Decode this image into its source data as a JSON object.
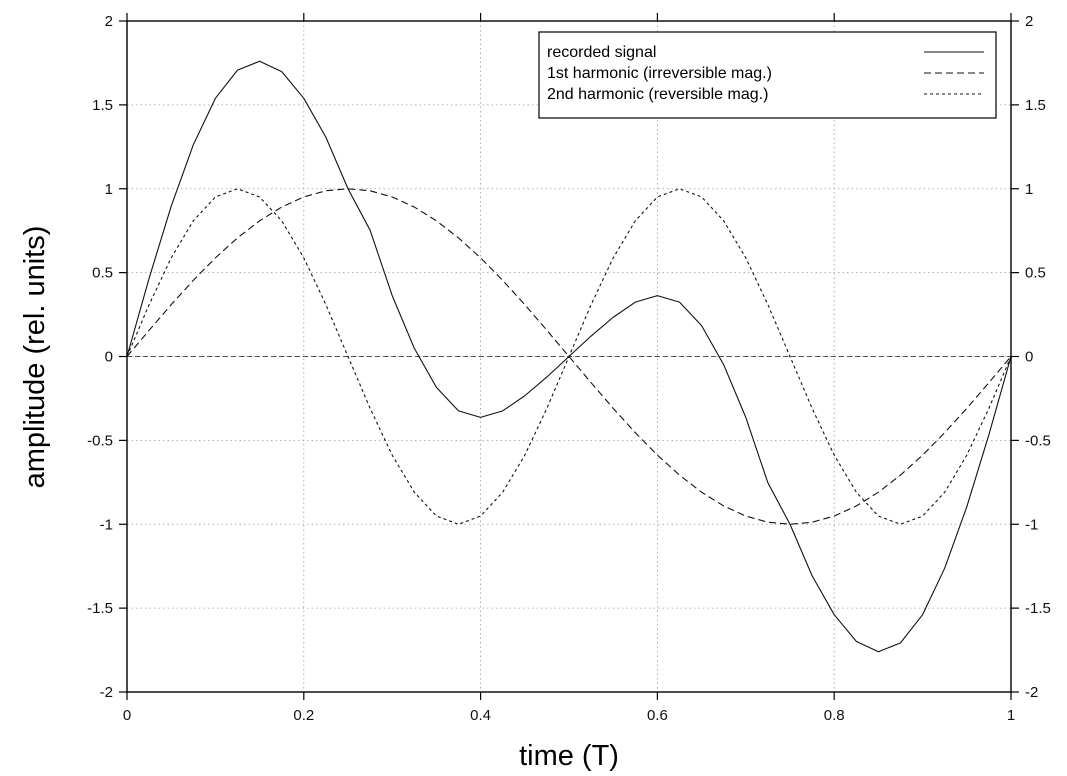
{
  "chart_data": {
    "type": "line",
    "title": "",
    "xlabel": "time (T)",
    "ylabel": "amplitude (rel. units)",
    "xlim": [
      0,
      1
    ],
    "ylim": [
      -2,
      2
    ],
    "x_ticks": [
      0,
      0.2,
      0.4,
      0.6,
      0.8,
      1
    ],
    "y_ticks": [
      -2,
      -1.5,
      -1,
      -0.5,
      0,
      0.5,
      1,
      1.5,
      2
    ],
    "x_tick_labels": [
      "0",
      "0.2",
      "0.4",
      "0.6",
      "0.8",
      "1"
    ],
    "y_tick_labels": [
      "-2",
      "-1.5",
      "-1",
      "-0.5",
      "0",
      "0.5",
      "1",
      "1.5",
      "2"
    ],
    "y2_tick_labels": [
      "-2",
      "-1.5",
      "-1",
      "-0.5",
      "0",
      "0.5",
      "1",
      "1.5",
      "2"
    ],
    "grid": true,
    "legend_position": "top-right",
    "series": [
      {
        "name": "recorded signal",
        "line_style": "solid",
        "x": [
          0,
          0.025,
          0.05,
          0.075,
          0.1,
          0.125,
          0.15,
          0.175,
          0.2,
          0.225,
          0.25,
          0.275,
          0.3,
          0.325,
          0.35,
          0.375,
          0.4,
          0.425,
          0.45,
          0.475,
          0.5,
          0.525,
          0.55,
          0.575,
          0.6,
          0.625,
          0.65,
          0.675,
          0.7,
          0.725,
          0.75,
          0.775,
          0.8,
          0.825,
          0.85,
          0.875,
          0.9,
          0.925,
          0.95,
          0.975,
          1
        ],
        "y": [
          0,
          0.466,
          0.896,
          1.262,
          1.539,
          1.707,
          1.76,
          1.698,
          1.539,
          1.307,
          1.0,
          0.753,
          0.363,
          0.049,
          -0.184,
          -0.324,
          -0.363,
          -0.324,
          -0.234,
          -0.122,
          0,
          0.122,
          0.234,
          0.324,
          0.363,
          0.324,
          0.184,
          -0.049,
          -0.363,
          -0.753,
          -1.0,
          -1.307,
          -1.539,
          -1.698,
          -1.76,
          -1.707,
          -1.539,
          -1.262,
          -0.896,
          -0.466,
          0
        ]
      },
      {
        "name": "1st harmonic (irreversible mag.)",
        "line_style": "dashed",
        "x": [
          0,
          0.025,
          0.05,
          0.075,
          0.1,
          0.125,
          0.15,
          0.175,
          0.2,
          0.225,
          0.25,
          0.275,
          0.3,
          0.325,
          0.35,
          0.375,
          0.4,
          0.425,
          0.45,
          0.475,
          0.5,
          0.525,
          0.55,
          0.575,
          0.6,
          0.625,
          0.65,
          0.675,
          0.7,
          0.725,
          0.75,
          0.775,
          0.8,
          0.825,
          0.85,
          0.875,
          0.9,
          0.925,
          0.95,
          0.975,
          1
        ],
        "y": [
          0,
          0.156,
          0.309,
          0.454,
          0.588,
          0.707,
          0.809,
          0.891,
          0.951,
          0.988,
          1.0,
          0.988,
          0.951,
          0.891,
          0.809,
          0.707,
          0.588,
          0.454,
          0.309,
          0.156,
          0,
          -0.156,
          -0.309,
          -0.454,
          -0.588,
          -0.707,
          -0.809,
          -0.891,
          -0.951,
          -0.988,
          -1.0,
          -0.988,
          -0.951,
          -0.891,
          -0.809,
          -0.707,
          -0.588,
          -0.454,
          -0.309,
          -0.156,
          0
        ]
      },
      {
        "name": "2nd harmonic (reversible mag.)",
        "line_style": "dotted",
        "x": [
          0,
          0.025,
          0.05,
          0.075,
          0.1,
          0.125,
          0.15,
          0.175,
          0.2,
          0.225,
          0.25,
          0.275,
          0.3,
          0.325,
          0.35,
          0.375,
          0.4,
          0.425,
          0.45,
          0.475,
          0.5,
          0.525,
          0.55,
          0.575,
          0.6,
          0.625,
          0.65,
          0.675,
          0.7,
          0.725,
          0.75,
          0.775,
          0.8,
          0.825,
          0.85,
          0.875,
          0.9,
          0.925,
          0.95,
          0.975,
          1
        ],
        "y": [
          0,
          0.309,
          0.588,
          0.809,
          0.951,
          1.0,
          0.951,
          0.809,
          0.588,
          0.309,
          0,
          -0.309,
          -0.588,
          -0.809,
          -0.951,
          -1.0,
          -0.951,
          -0.809,
          -0.588,
          -0.309,
          0,
          0.309,
          0.588,
          0.809,
          0.951,
          1.0,
          0.951,
          0.809,
          0.588,
          0.309,
          0,
          -0.309,
          -0.588,
          -0.809,
          -0.951,
          -1.0,
          -0.951,
          -0.809,
          -0.588,
          -0.309,
          0
        ]
      }
    ]
  }
}
